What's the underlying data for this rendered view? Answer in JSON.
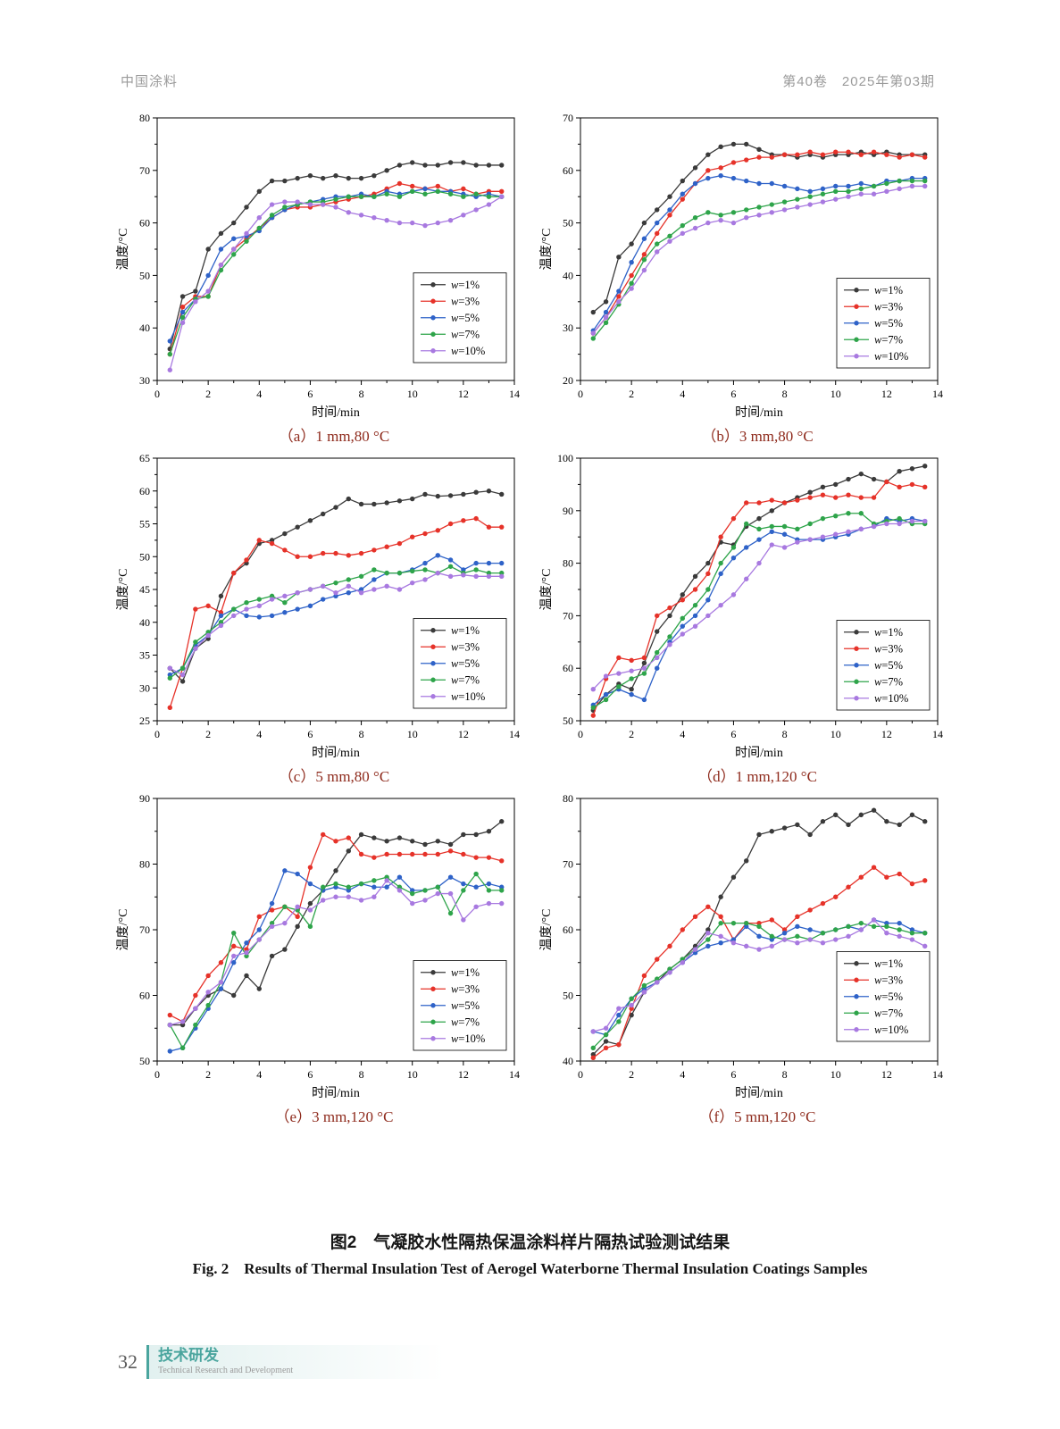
{
  "page": {
    "header_left": "中国涂料",
    "header_right": "第40卷　2025年第03期",
    "caption_cn": "图2　气凝胶水性隔热保温涂料样片隔热试验测试结果",
    "caption_en": "Fig. 2　Results of Thermal Insulation Test of Aerogel Waterborne Thermal Insulation Coatings Samples",
    "footer_page_number": "32",
    "footer_section_cn": "技术研发",
    "footer_section_en": "Technical Research and Development"
  },
  "colors": {
    "w1": "#3a3a3a",
    "w3": "#e63229",
    "w5": "#2e62c8",
    "w7": "#2ea44a",
    "w10": "#a879e0",
    "caption_red": "#8e2a1c",
    "header_gray": "#9b9b9b",
    "footer_teal": "#4aa59e"
  },
  "chart_data": [
    {
      "type": "line",
      "subcaption": "（a）1 mm,80 °C",
      "xlabel": "时间/min",
      "ylabel": "温度/°C",
      "xlim": [
        0,
        14
      ],
      "xtick_step": 2,
      "ylim": [
        30,
        80
      ],
      "ytick_step": 10,
      "x_start": 0.5,
      "x_step": 0.5,
      "legend_raise": 20,
      "series": [
        {
          "name": "w=1%",
          "color_key": "w1",
          "values": [
            36,
            46,
            47,
            55,
            58,
            60,
            63,
            66,
            68,
            68,
            68.5,
            69,
            68.5,
            69,
            68.5,
            68.5,
            69,
            70,
            71,
            71.5,
            71,
            71,
            71.5,
            71.5,
            71,
            71,
            71
          ]
        },
        {
          "name": "w=3%",
          "color_key": "w3",
          "values": [
            35,
            44,
            46,
            46,
            52,
            55,
            57,
            59,
            61,
            62.5,
            63,
            63,
            63.5,
            64,
            64.5,
            65,
            65.5,
            66.5,
            67.5,
            67,
            66.5,
            67,
            66,
            66.5,
            65.5,
            66,
            66
          ]
        },
        {
          "name": "w=5%",
          "color_key": "w5",
          "values": [
            37.5,
            43,
            45.5,
            50,
            55,
            57,
            57.5,
            58.5,
            61,
            62.5,
            63.5,
            64,
            64.5,
            65,
            65,
            65.5,
            65,
            66,
            65.5,
            66,
            66.5,
            66,
            66,
            65.5,
            65,
            65.5,
            65
          ]
        },
        {
          "name": "w=7%",
          "color_key": "w7",
          "values": [
            35,
            42,
            45.5,
            46,
            51,
            54,
            56.5,
            59,
            61.5,
            63,
            63.5,
            64,
            64,
            64.5,
            65,
            65,
            65,
            65.5,
            65,
            66,
            65.5,
            66,
            65.5,
            65,
            65.5,
            65,
            65
          ]
        },
        {
          "name": "w=10%",
          "color_key": "w10",
          "values": [
            32,
            41,
            45,
            47,
            52,
            55,
            58,
            61,
            63.5,
            64,
            64,
            63.5,
            63.5,
            63,
            62,
            61.5,
            61,
            60.5,
            60,
            60,
            59.5,
            60,
            60.5,
            61.5,
            62.5,
            63.5,
            65
          ]
        }
      ]
    },
    {
      "type": "line",
      "subcaption": "（b）3 mm,80 °C",
      "xlabel": "时间/min",
      "ylabel": "温度/°C",
      "xlim": [
        0,
        14
      ],
      "xtick_step": 2,
      "ylim": [
        20,
        70
      ],
      "ytick_step": 10,
      "x_start": 0.5,
      "x_step": 0.5,
      "legend_raise": 14,
      "series": [
        {
          "name": "w=1%",
          "color_key": "w1",
          "values": [
            33,
            35,
            43.5,
            46,
            50,
            52.5,
            55,
            58,
            60.5,
            63,
            64.5,
            65,
            65,
            64,
            63,
            63,
            62.5,
            63,
            62.5,
            63,
            63,
            63.5,
            63,
            63.5,
            63,
            63,
            63
          ]
        },
        {
          "name": "w=3%",
          "color_key": "w3",
          "values": [
            29,
            32,
            36,
            40,
            44,
            48,
            51.5,
            54.5,
            57.5,
            60,
            60.5,
            61.5,
            62,
            62.5,
            62.5,
            63,
            63,
            63.5,
            63,
            63.5,
            63.5,
            63,
            63.5,
            63,
            62.5,
            63,
            62.5
          ]
        },
        {
          "name": "w=5%",
          "color_key": "w5",
          "values": [
            29.5,
            33,
            37,
            42.5,
            47,
            50,
            52.5,
            55.5,
            57.5,
            58.5,
            59,
            58.5,
            58,
            57.5,
            57.5,
            57,
            56.5,
            56,
            56.5,
            57,
            57,
            57.5,
            57,
            58,
            58,
            58.5,
            58.5
          ]
        },
        {
          "name": "w=7%",
          "color_key": "w7",
          "values": [
            28,
            31,
            34.5,
            38.5,
            43,
            46,
            47.5,
            49.5,
            51,
            52,
            51.5,
            52,
            52.5,
            53,
            53.5,
            54,
            54.5,
            55,
            55.5,
            56,
            56,
            56.5,
            57,
            57.5,
            58,
            58,
            58
          ]
        },
        {
          "name": "w=10%",
          "color_key": "w10",
          "values": [
            29,
            32,
            35,
            37.5,
            41,
            44.5,
            46.5,
            48,
            49,
            50,
            50.5,
            50,
            51,
            51.5,
            52,
            52.5,
            53,
            53.5,
            54,
            54.5,
            55,
            55.5,
            55.5,
            56,
            56.5,
            57,
            57
          ]
        }
      ]
    },
    {
      "type": "line",
      "subcaption": "（c）5 mm,80 °C",
      "xlabel": "时间/min",
      "ylabel": "温度/°C",
      "xlim": [
        0,
        14
      ],
      "xtick_step": 2,
      "ylim": [
        25,
        65
      ],
      "ytick_step": 5,
      "x_start": 0.5,
      "x_step": 0.5,
      "legend_raise": 14,
      "series": [
        {
          "name": "w=1%",
          "color_key": "w1",
          "values": [
            33,
            31,
            36,
            37.5,
            44,
            47.5,
            49,
            52,
            52.5,
            53.5,
            54.5,
            55.5,
            56.5,
            57.5,
            58.8,
            58,
            58,
            58.2,
            58.5,
            58.8,
            59.5,
            59.2,
            59.3,
            59.5,
            59.8,
            60,
            59.5
          ]
        },
        {
          "name": "w=3%",
          "color_key": "w3",
          "values": [
            27,
            33,
            42,
            42.5,
            41.5,
            47.5,
            49.5,
            52.5,
            52,
            51,
            50,
            50,
            50.5,
            50.5,
            50.2,
            50.5,
            51,
            51.5,
            52,
            53,
            53.5,
            54,
            55,
            55.5,
            55.8,
            54.5,
            54.5
          ]
        },
        {
          "name": "w=5%",
          "color_key": "w5",
          "values": [
            32,
            33,
            36.5,
            38,
            41,
            42,
            41,
            40.8,
            41,
            41.5,
            42,
            42.5,
            43.5,
            44,
            44.5,
            45,
            46.5,
            47.5,
            47.5,
            48,
            49,
            50.2,
            49.5,
            48,
            49,
            49,
            49
          ]
        },
        {
          "name": "w=7%",
          "color_key": "w7",
          "values": [
            31.5,
            33,
            37,
            38.5,
            40,
            42,
            43,
            43.5,
            44,
            43,
            44.5,
            45,
            45.5,
            46,
            46.5,
            47,
            48,
            47.5,
            47.5,
            47.8,
            48,
            47.5,
            48.5,
            47.5,
            48,
            47.5,
            47.5
          ]
        },
        {
          "name": "w=10%",
          "color_key": "w10",
          "values": [
            33,
            32,
            36,
            38,
            39.5,
            41,
            42,
            42.5,
            43.5,
            44,
            44.5,
            45,
            45.5,
            44.5,
            45.5,
            44.5,
            45,
            45.5,
            45,
            46,
            46.5,
            47.5,
            47,
            47.2,
            47,
            47,
            47
          ]
        }
      ]
    },
    {
      "type": "line",
      "subcaption": "（d）1 mm,120 °C",
      "xlabel": "时间/min",
      "ylabel": "温度/°C",
      "xlim": [
        0,
        14
      ],
      "xtick_step": 2,
      "ylim": [
        50,
        100
      ],
      "ytick_step": 10,
      "x_start": 0.5,
      "x_step": 0.5,
      "legend_raise": 12,
      "series": [
        {
          "name": "w=1%",
          "color_key": "w1",
          "values": [
            52,
            55,
            57,
            56,
            61,
            67,
            70,
            74,
            77.5,
            80,
            84,
            83.5,
            87,
            88.5,
            90,
            91.5,
            92.5,
            93.5,
            94.5,
            95,
            96,
            97,
            96,
            95.5,
            97.5,
            98,
            98.5
          ]
        },
        {
          "name": "w=3%",
          "color_key": "w3",
          "values": [
            51,
            58,
            62,
            61.5,
            62,
            70,
            71.5,
            73,
            75,
            78,
            85,
            88.5,
            91.5,
            91.5,
            92,
            91.5,
            92,
            92.5,
            93,
            92.5,
            93,
            92.5,
            92.5,
            95.5,
            94.5,
            95,
            94.5
          ]
        },
        {
          "name": "w=5%",
          "color_key": "w5",
          "values": [
            53,
            55,
            56,
            55,
            54,
            60,
            65,
            68,
            70,
            73,
            78,
            81,
            83,
            84.5,
            86,
            85.5,
            84.5,
            84.5,
            84.5,
            85,
            85.5,
            86.5,
            87,
            88.5,
            88,
            88.5,
            88
          ]
        },
        {
          "name": "w=7%",
          "color_key": "w7",
          "values": [
            52.5,
            54,
            56.5,
            58,
            59,
            63,
            66,
            69.5,
            72,
            75,
            80,
            83,
            87.5,
            86.5,
            87,
            87,
            86.5,
            87.5,
            88.5,
            89,
            89.5,
            89.5,
            87.5,
            88,
            88.5,
            87.5,
            87.5
          ]
        },
        {
          "name": "w=10%",
          "color_key": "w10",
          "values": [
            56,
            58.5,
            59,
            59.5,
            60,
            62,
            64.5,
            66.5,
            68,
            70,
            72,
            74,
            77,
            80,
            83.5,
            83,
            84,
            84.5,
            85,
            85.5,
            86,
            86.5,
            87,
            87.5,
            87.5,
            88,
            88
          ]
        }
      ]
    },
    {
      "type": "line",
      "subcaption": "（e）3 mm,120 °C",
      "xlabel": "时间/min",
      "ylabel": "温度/°C",
      "xlim": [
        0,
        14
      ],
      "xtick_step": 2,
      "ylim": [
        50,
        90
      ],
      "ytick_step": 10,
      "x_start": 0.5,
      "x_step": 0.5,
      "legend_raise": 12,
      "series": [
        {
          "name": "w=1%",
          "color_key": "w1",
          "values": [
            55.5,
            55.5,
            58,
            60,
            61,
            60,
            63,
            61,
            66,
            67,
            70.5,
            74,
            76,
            79,
            82,
            84.5,
            84,
            83.5,
            84,
            83.5,
            83,
            83.5,
            83,
            84.5,
            84.5,
            85,
            86.5
          ]
        },
        {
          "name": "w=3%",
          "color_key": "w3",
          "values": [
            57,
            56,
            60,
            63,
            65,
            67.5,
            67,
            72,
            73,
            73.5,
            72,
            79.5,
            84.5,
            83.5,
            84,
            81.5,
            81,
            81.5,
            81.5,
            81.5,
            81.5,
            81.5,
            82,
            81.5,
            81,
            81,
            80.5
          ]
        },
        {
          "name": "w=5%",
          "color_key": "w5",
          "values": [
            51.5,
            52,
            55,
            58,
            61,
            65,
            68,
            70,
            74,
            79,
            78.5,
            77,
            76,
            76.5,
            76,
            77,
            76.5,
            76.5,
            78,
            76,
            76,
            76.5,
            78,
            77,
            76.5,
            77,
            76.5
          ]
        },
        {
          "name": "w=7%",
          "color_key": "w7",
          "values": [
            55.5,
            52,
            55.5,
            58.5,
            62,
            69.5,
            66,
            68.5,
            71,
            73.5,
            73,
            70.5,
            76.5,
            77,
            76.5,
            77,
            77.5,
            78,
            76.5,
            75.5,
            76,
            76.5,
            72.5,
            76,
            78.5,
            76,
            76
          ]
        },
        {
          "name": "w=10%",
          "color_key": "w10",
          "values": [
            55.5,
            56,
            58,
            60.5,
            62,
            66,
            66.5,
            68.5,
            70.5,
            71,
            73.5,
            73,
            74.5,
            75,
            75,
            74.5,
            75,
            77.5,
            76,
            74,
            74.5,
            75.5,
            75.5,
            71.5,
            73.5,
            74,
            74
          ]
        }
      ]
    },
    {
      "type": "line",
      "subcaption": "（f）5 mm,120 °C",
      "xlabel": "时间/min",
      "ylabel": "温度/°C",
      "xlim": [
        0,
        14
      ],
      "xtick_step": 2,
      "ylim": [
        40,
        80
      ],
      "ytick_step": 10,
      "x_start": 0.5,
      "x_step": 0.5,
      "legend_raise": 22,
      "series": [
        {
          "name": "w=1%",
          "color_key": "w1",
          "values": [
            41,
            43,
            42.5,
            47,
            50.5,
            52,
            54,
            55.5,
            57.5,
            60,
            65,
            68,
            70.5,
            74.5,
            75,
            75.5,
            76,
            74.5,
            76.5,
            77.5,
            76,
            77.5,
            78.2,
            76.5,
            76,
            77.5,
            76.5
          ]
        },
        {
          "name": "w=3%",
          "color_key": "w3",
          "values": [
            40.5,
            42,
            42.5,
            48,
            53,
            55.5,
            57.5,
            60,
            62,
            63.5,
            62,
            58.5,
            61,
            61,
            61.5,
            60,
            62,
            63,
            64,
            65,
            66.5,
            68,
            69.5,
            68,
            68.5,
            67,
            67.5
          ]
        },
        {
          "name": "w=5%",
          "color_key": "w5",
          "values": [
            44.5,
            44,
            47,
            49.5,
            51,
            52,
            53.5,
            55,
            56.5,
            57.5,
            58,
            58.5,
            60.5,
            59,
            58.5,
            59.5,
            60.5,
            60,
            59.5,
            60,
            60.5,
            60,
            61.5,
            61,
            61,
            60,
            59.5
          ]
        },
        {
          "name": "w=7%",
          "color_key": "w7",
          "values": [
            42,
            44,
            46,
            49.5,
            51.5,
            52.5,
            54,
            55.5,
            57,
            58.5,
            61,
            61,
            61,
            60.5,
            59,
            58.5,
            59,
            58.5,
            59.5,
            60,
            60.5,
            61,
            60.5,
            60.5,
            60,
            59.5,
            59.5
          ]
        },
        {
          "name": "w=10%",
          "color_key": "w10",
          "values": [
            44.5,
            45,
            48,
            48.5,
            50.5,
            52,
            53.5,
            55,
            57,
            59.5,
            59,
            58,
            57.5,
            57,
            57.5,
            58.5,
            58,
            58.5,
            58,
            58.5,
            59,
            60,
            61.5,
            59.5,
            59,
            58.5,
            57.5
          ]
        }
      ]
    }
  ]
}
